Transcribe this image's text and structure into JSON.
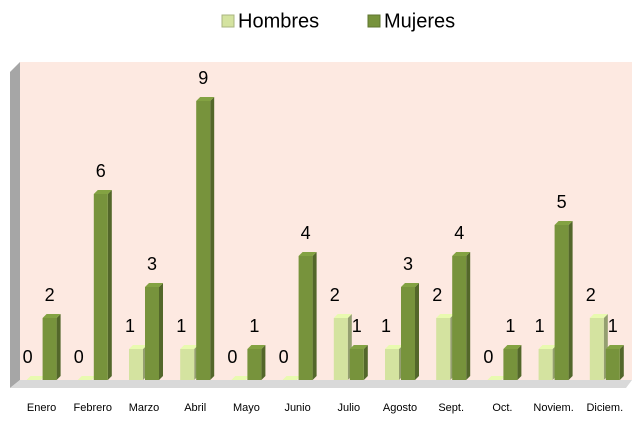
{
  "chart_data": {
    "type": "bar",
    "categories": [
      "Enero",
      "Febrero",
      "Marzo",
      "Abril",
      "Mayo",
      "Junio",
      "Julio",
      "Agosto",
      "Sept.",
      "Oct.",
      "Noviem.",
      "Diciem."
    ],
    "series": [
      {
        "name": "Hombres",
        "color": "#d4e3a0",
        "values": [
          0,
          0,
          1,
          1,
          0,
          0,
          2,
          1,
          2,
          0,
          1,
          2
        ]
      },
      {
        "name": "Mujeres",
        "color": "#77933c",
        "values": [
          2,
          6,
          3,
          9,
          1,
          4,
          1,
          3,
          4,
          1,
          5,
          1
        ]
      }
    ],
    "ylim": [
      0,
      10
    ],
    "legend": "top",
    "grid": false
  }
}
